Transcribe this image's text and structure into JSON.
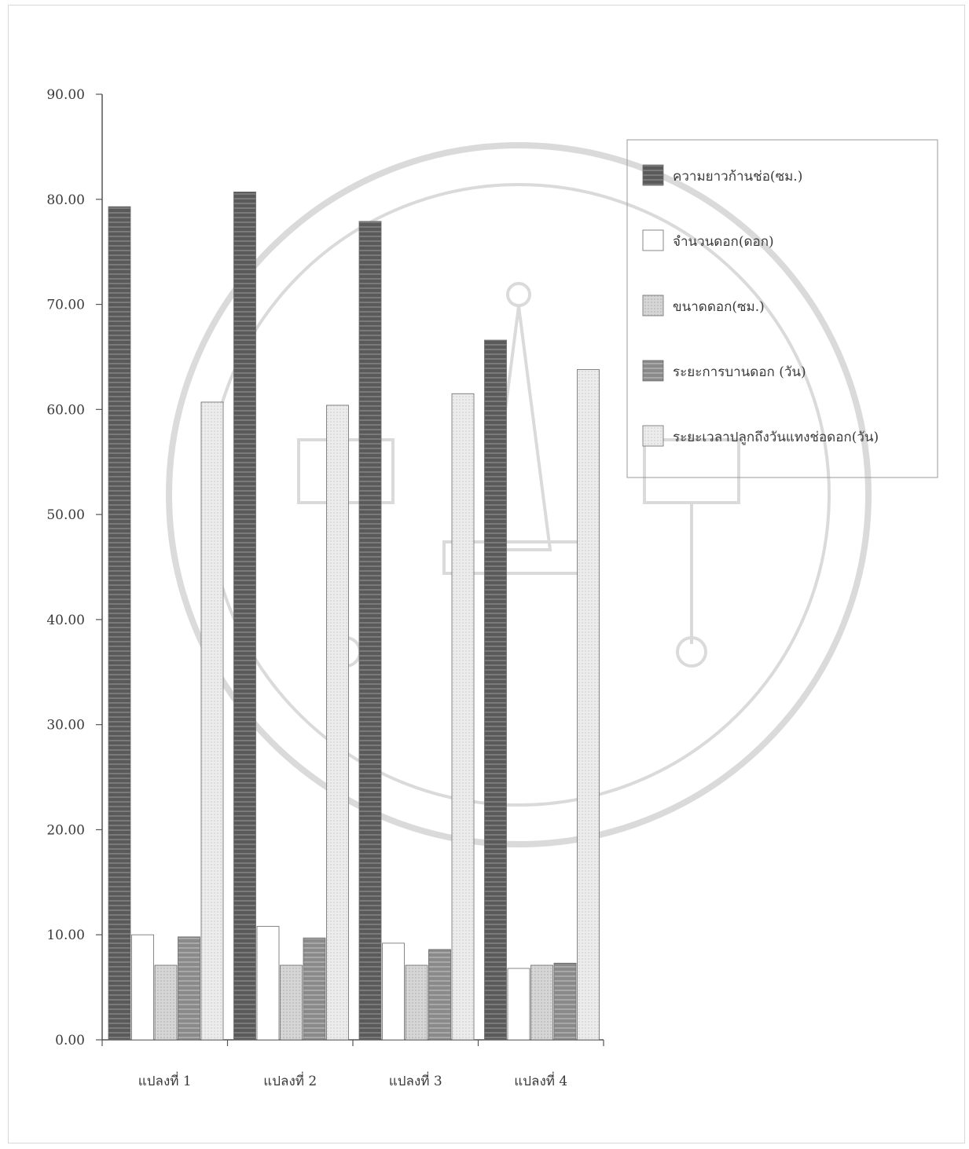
{
  "chart_data": {
    "type": "bar",
    "categories": [
      "แปลงที่ 1",
      "แปลงที่ 2",
      "แปลงที่ 3",
      "แปลงที่ 4"
    ],
    "series": [
      {
        "name": "ความยาวก้านช่อ(ซม.)",
        "values": [
          79.3,
          80.7,
          77.9,
          66.6
        ],
        "fill": "dark"
      },
      {
        "name": "จำนวนดอก(ดอก)",
        "values": [
          10.0,
          10.8,
          9.2,
          6.8
        ],
        "fill": "white"
      },
      {
        "name": "ขนาดดอก(ซม.)",
        "values": [
          7.1,
          7.1,
          7.1,
          7.1
        ],
        "fill": "light"
      },
      {
        "name": "ระยะการบานดอก (วัน)",
        "values": [
          9.8,
          9.7,
          8.6,
          7.3
        ],
        "fill": "medium"
      },
      {
        "name": "ระยะเวลาปลูกถึงวันแทงช่อดอก(วัน)",
        "values": [
          60.7,
          60.4,
          61.5,
          63.8
        ],
        "fill": "pale"
      }
    ],
    "yticks": [
      "0.00",
      "10.00",
      "20.00",
      "30.00",
      "40.00",
      "50.00",
      "60.00",
      "70.00",
      "80.00",
      "90.00"
    ],
    "ylim": [
      0,
      90
    ],
    "title": "",
    "xlabel": "",
    "ylabel": "",
    "grid": false,
    "legend_position": "top-right",
    "colors": {
      "dark": "#5f5f5f",
      "white": "#ffffff",
      "light": "#d2d2d2",
      "medium": "#8c8c8c",
      "pale": "#e9e9e9",
      "axis": "#555555",
      "watermark": "#bdbdbd"
    }
  }
}
